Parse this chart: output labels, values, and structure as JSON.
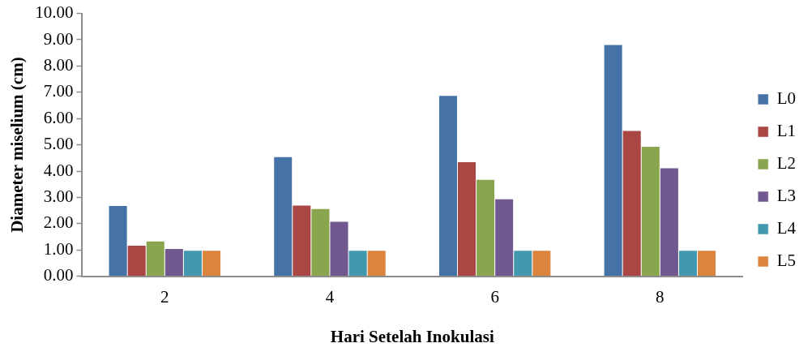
{
  "chart_data": {
    "type": "bar",
    "xlabel": "Hari Setelah Inokulasi",
    "ylabel": "Diameter miselium (cm)",
    "categories": [
      "2",
      "4",
      "6",
      "8"
    ],
    "series": [
      {
        "name": "L0",
        "color": "#4572a7",
        "values": [
          2.7,
          4.56,
          6.89,
          8.83
        ]
      },
      {
        "name": "L1",
        "color": "#aa4643",
        "values": [
          1.19,
          2.72,
          4.37,
          5.56
        ]
      },
      {
        "name": "L2",
        "color": "#89a54e",
        "values": [
          1.35,
          2.59,
          3.7,
          4.96
        ]
      },
      {
        "name": "L3",
        "color": "#71588f",
        "values": [
          1.07,
          2.1,
          2.96,
          4.14
        ]
      },
      {
        "name": "L4",
        "color": "#4198af",
        "values": [
          1.0,
          1.0,
          1.0,
          1.0
        ]
      },
      {
        "name": "L5",
        "color": "#db843d",
        "values": [
          1.0,
          1.0,
          1.0,
          1.0
        ]
      }
    ],
    "ylim": [
      0,
      10
    ],
    "yticks": [
      {
        "value": 0,
        "label": "0.00"
      },
      {
        "value": 1,
        "label": "1.00"
      },
      {
        "value": 2,
        "label": "2.00"
      },
      {
        "value": 3,
        "label": "3.00"
      },
      {
        "value": 4,
        "label": "4.00"
      },
      {
        "value": 5,
        "label": "5.00"
      },
      {
        "value": 6,
        "label": "6.00"
      },
      {
        "value": 7,
        "label": "7.00"
      },
      {
        "value": 8,
        "label": "8.00"
      },
      {
        "value": 9,
        "label": "9.00"
      },
      {
        "value": 10,
        "label": "10.00"
      }
    ],
    "grid": false,
    "legend": "right"
  }
}
